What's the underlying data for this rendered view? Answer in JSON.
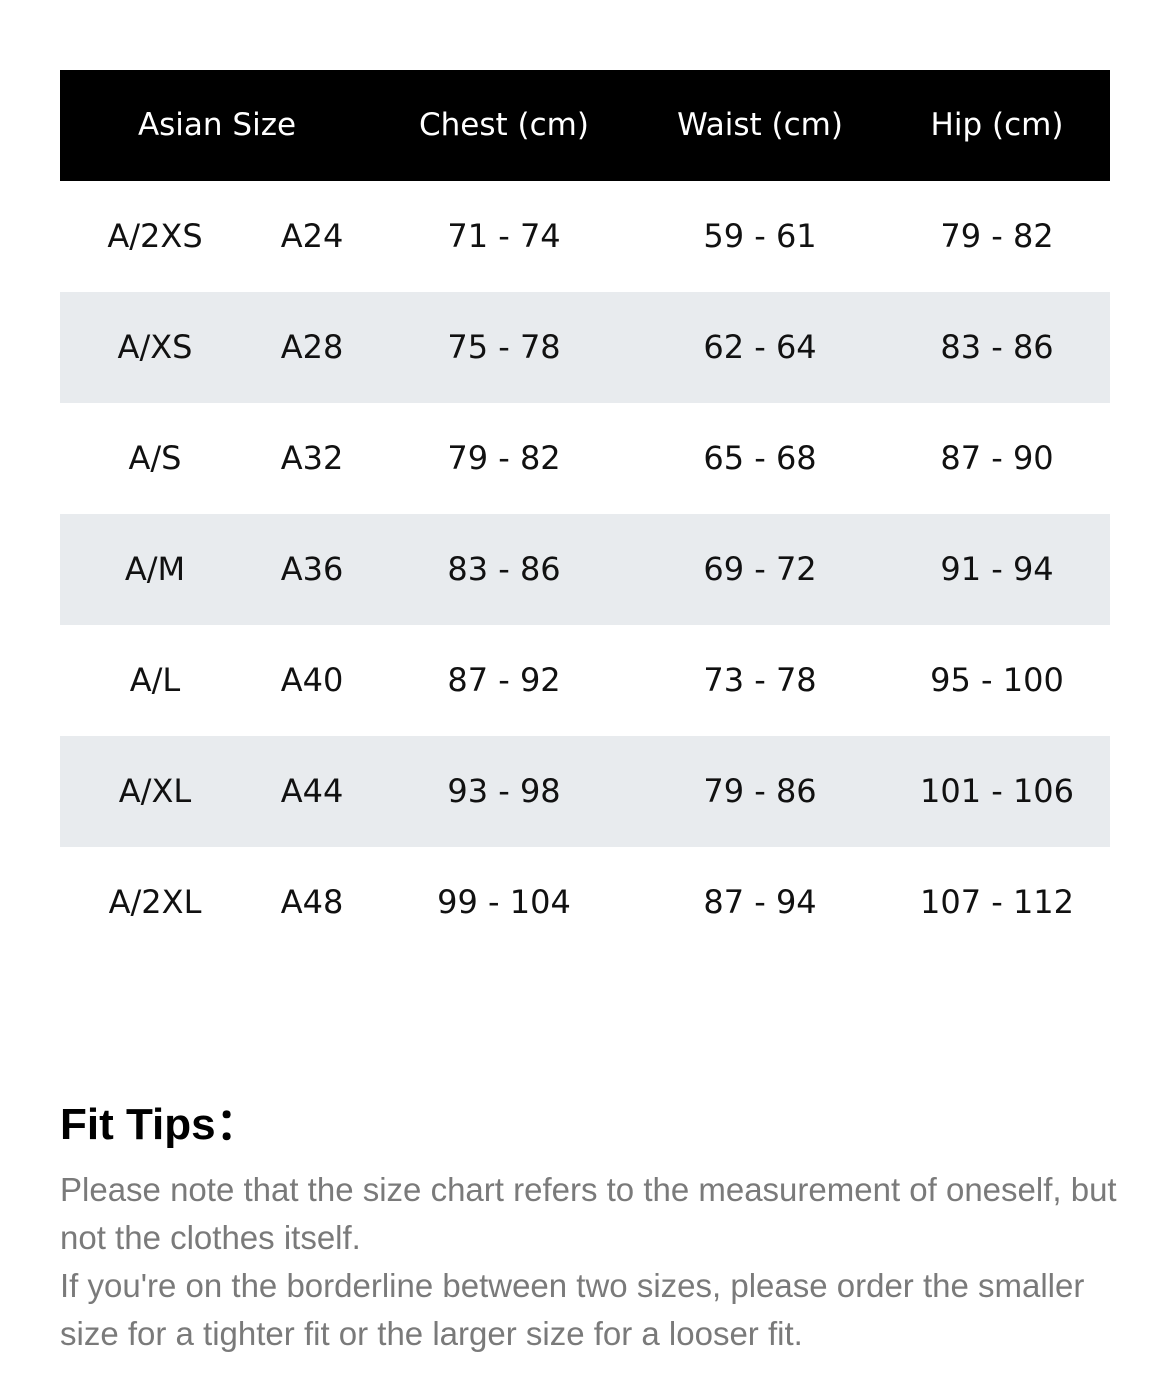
{
  "table": {
    "headers": {
      "size": "Asian Size",
      "chest": "Chest (cm)",
      "waist": "Waist (cm)",
      "hip": "Hip (cm)"
    },
    "rows": [
      {
        "size": "A/2XS",
        "code": "A24",
        "chest": "71 - 74",
        "waist": "59 - 61",
        "hip": "79 - 82"
      },
      {
        "size": "A/XS",
        "code": "A28",
        "chest": "75 - 78",
        "waist": "62 - 64",
        "hip": "83 - 86"
      },
      {
        "size": "A/S",
        "code": "A32",
        "chest": "79 - 82",
        "waist": "65 - 68",
        "hip": "87 - 90"
      },
      {
        "size": "A/M",
        "code": "A36",
        "chest": "83 - 86",
        "waist": "69 - 72",
        "hip": "91 - 94"
      },
      {
        "size": "A/L",
        "code": "A40",
        "chest": "87 - 92",
        "waist": "73 - 78",
        "hip": "95 - 100"
      },
      {
        "size": "A/XL",
        "code": "A44",
        "chest": "93 - 98",
        "waist": "79 - 86",
        "hip": "101 - 106"
      },
      {
        "size": "A/2XL",
        "code": "A48",
        "chest": "99 - 104",
        "waist": "87 - 94",
        "hip": "107 - 112"
      }
    ]
  },
  "tips": {
    "title": "Fit Tips：",
    "line1": "Please note that the size chart refers to the measurement of oneself, but not the clothes itself.",
    "line2": "If you're on the borderline between two sizes, please order the smaller size for a tighter fit or the larger size for a looser fit."
  },
  "colors": {
    "header_bg": "#000000",
    "alt_row_bg": "#e8ebee",
    "tips_text": "#7a7a7a"
  }
}
